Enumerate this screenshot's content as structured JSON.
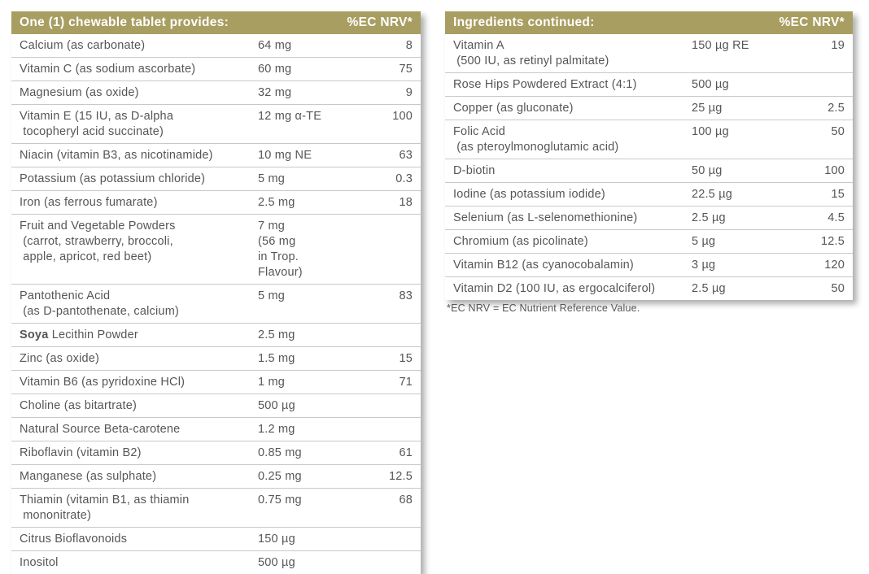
{
  "colors": {
    "header_bg": "#A89E61",
    "header_text": "#FFFFFF",
    "row_text": "#55565A",
    "divider": "#C9C9C9"
  },
  "left_table": {
    "header": {
      "title": "One (1) chewable tablet provides:",
      "nrv_label": "%EC NRV*"
    },
    "rows": [
      {
        "name": "Calcium (as carbonate)",
        "amount": "64 mg",
        "nrv": "8"
      },
      {
        "name": "Vitamin C (as sodium ascorbate)",
        "amount": "60 mg",
        "nrv": "75"
      },
      {
        "name": "Magnesium (as oxide)",
        "amount": "32 mg",
        "nrv": "9"
      },
      {
        "name": "Vitamin E (15 IU, as D-alpha\n tocopheryl acid succinate)",
        "amount": "12 mg α-TE",
        "nrv": "100"
      },
      {
        "name": "Niacin (vitamin B3, as nicotinamide)",
        "amount": "10 mg NE",
        "nrv": "63"
      },
      {
        "name": "Potassium (as potassium chloride)",
        "amount": "5 mg",
        "nrv": "0.3"
      },
      {
        "name": "Iron (as ferrous fumarate)",
        "amount": "2.5 mg",
        "nrv": "18"
      },
      {
        "name": "Fruit and Vegetable Powders\n (carrot, strawberry, broccoli,\n apple, apricot, red beet)",
        "amount": "7 mg\n(56 mg\nin Trop.\nFlavour)",
        "nrv": ""
      },
      {
        "name": "Pantothenic Acid\n (as D-pantothenate, calcium)",
        "amount": "5 mg",
        "nrv": "83"
      },
      {
        "name_bold": "Soya",
        "name": " Lecithin Powder",
        "amount": "2.5 mg",
        "nrv": ""
      },
      {
        "name": "Zinc (as oxide)",
        "amount": "1.5 mg",
        "nrv": "15"
      },
      {
        "name": "Vitamin B6 (as pyridoxine HCl)",
        "amount": "1 mg",
        "nrv": "71"
      },
      {
        "name": "Choline (as bitartrate)",
        "amount": "500 µg",
        "nrv": ""
      },
      {
        "name": "Natural Source Beta-carotene",
        "amount": "1.2 mg",
        "nrv": ""
      },
      {
        "name": "Riboflavin (vitamin B2)",
        "amount": "0.85 mg",
        "nrv": "61"
      },
      {
        "name": "Manganese (as sulphate)",
        "amount": "0.25 mg",
        "nrv": "12.5"
      },
      {
        "name": "Thiamin (vitamin B1, as thiamin\n mononitrate)",
        "amount": "0.75 mg",
        "nrv": "68"
      },
      {
        "name": "Citrus Bioflavonoids",
        "amount": "150 µg",
        "nrv": ""
      },
      {
        "name": "Inositol",
        "amount": "500 µg",
        "nrv": ""
      }
    ]
  },
  "right_table": {
    "header": {
      "title": "Ingredients continued:",
      "nrv_label": "%EC NRV*"
    },
    "rows": [
      {
        "name": "Vitamin A\n (500 IU, as retinyl palmitate)",
        "amount": "150 µg RE",
        "nrv": "19"
      },
      {
        "name": "Rose Hips Powdered Extract (4:1)",
        "amount": "500 µg",
        "nrv": ""
      },
      {
        "name": "Copper (as gluconate)",
        "amount": "25 µg",
        "nrv": "2.5"
      },
      {
        "name": "Folic Acid\n (as pteroylmonoglutamic acid)",
        "amount": "100 µg",
        "nrv": "50"
      },
      {
        "name": "D-biotin",
        "amount": "50 µg",
        "nrv": "100"
      },
      {
        "name": "Iodine (as potassium iodide)",
        "amount": "22.5 µg",
        "nrv": "15"
      },
      {
        "name": "Selenium (as L-selenomethionine)",
        "amount": "2.5 µg",
        "nrv": "4.5"
      },
      {
        "name": "Chromium (as picolinate)",
        "amount": "5 µg",
        "nrv": "12.5"
      },
      {
        "name": "Vitamin B12 (as cyanocobalamin)",
        "amount": "3 µg",
        "nrv": "120"
      },
      {
        "name": "Vitamin D2 (100 IU, as ergocalciferol)",
        "amount": "2.5 µg",
        "nrv": "50"
      }
    ],
    "footnote": "*EC NRV = EC Nutrient Reference Value."
  }
}
